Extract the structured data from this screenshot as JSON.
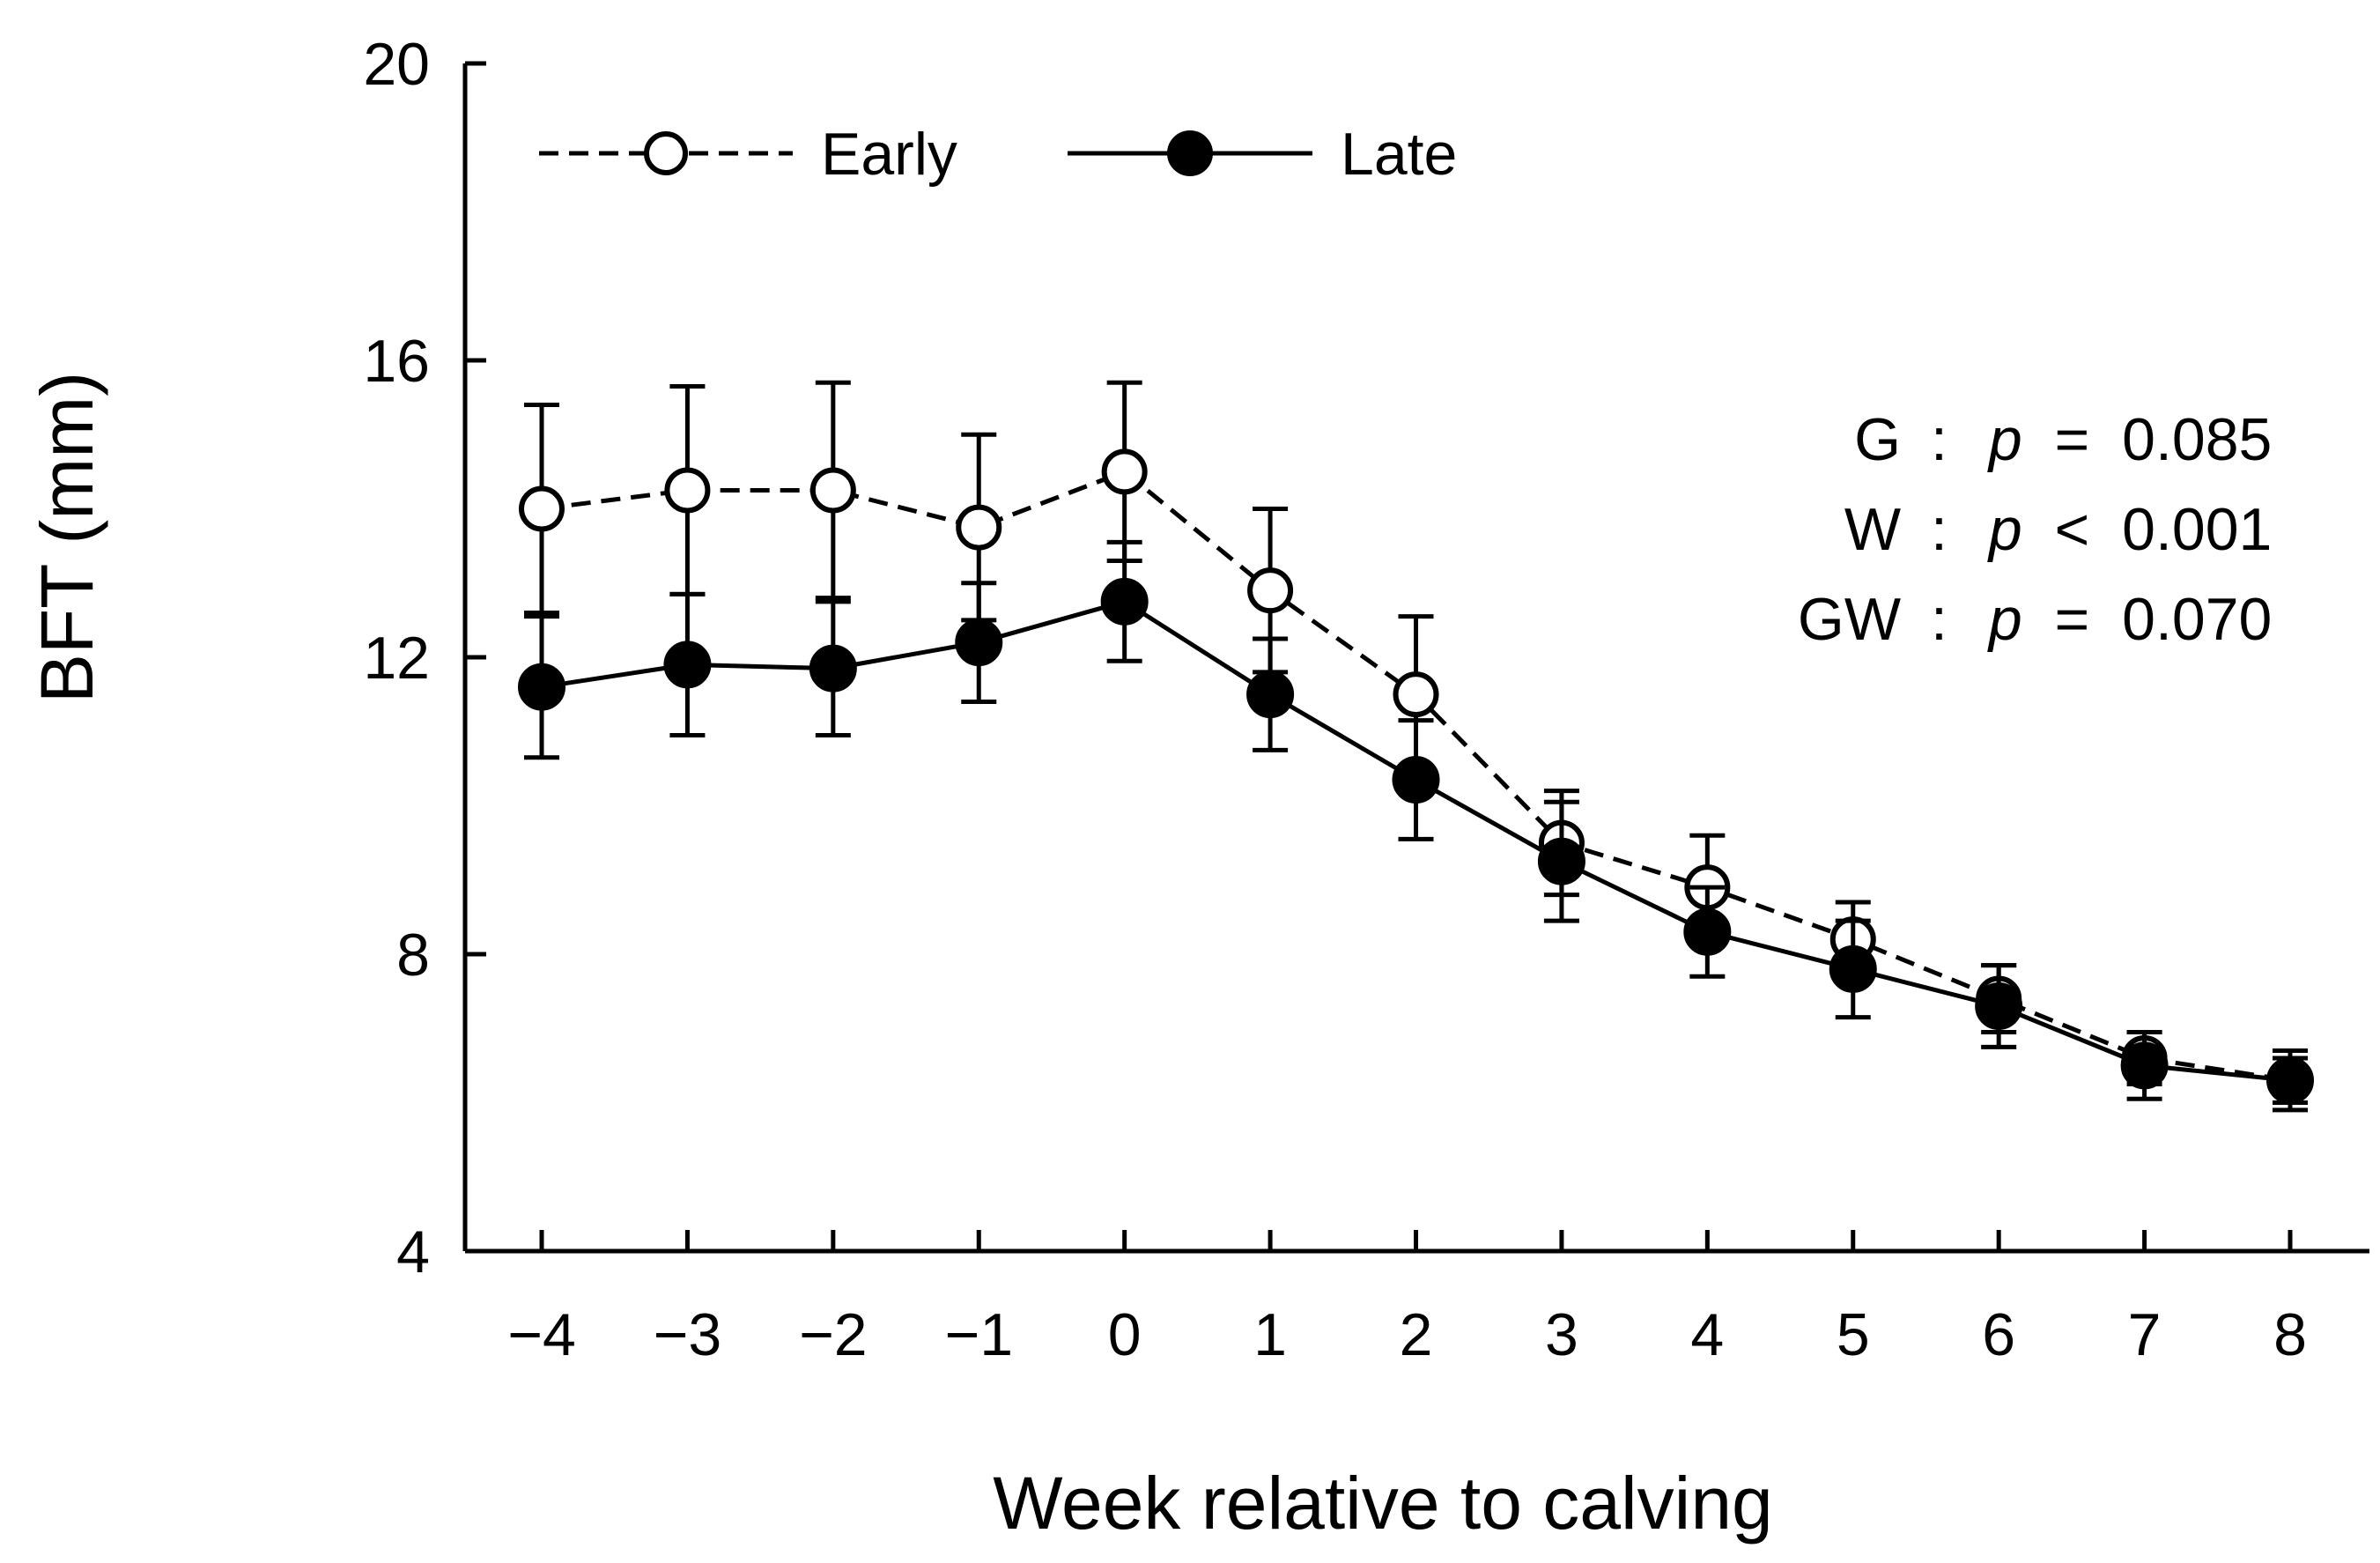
{
  "chart_data": {
    "type": "line",
    "xlabel": "Week relative to calving",
    "ylabel": "BFT (mm)",
    "ylim": [
      4,
      20
    ],
    "yticks": [
      4,
      8,
      12,
      16,
      20
    ],
    "x": [
      -4,
      -3,
      -2,
      -1,
      0,
      1,
      2,
      3,
      4,
      5,
      6,
      7,
      8
    ],
    "x_tick_labels": [
      "−4",
      "−3",
      "−2",
      "−1",
      "0",
      "1",
      "2",
      "3",
      "4",
      "5",
      "6",
      "7",
      "8"
    ],
    "series": [
      {
        "name": "Early",
        "marker": "open-circle",
        "line_style": "dashed",
        "values": [
          14.0,
          14.25,
          14.25,
          13.75,
          14.5,
          12.9,
          11.5,
          9.5,
          8.9,
          8.2,
          7.4,
          6.6,
          6.3
        ],
        "error": [
          1.4,
          1.4,
          1.45,
          1.25,
          1.2,
          1.1,
          1.05,
          0.7,
          0.7,
          0.5,
          0.45,
          0.35,
          0.3
        ]
      },
      {
        "name": "Late",
        "marker": "filled-circle",
        "line_style": "solid",
        "values": [
          11.6,
          11.9,
          11.85,
          12.2,
          12.75,
          11.5,
          10.35,
          9.25,
          8.3,
          7.8,
          7.3,
          6.5,
          6.3
        ],
        "error": [
          0.95,
          0.95,
          0.9,
          0.8,
          0.8,
          0.75,
          0.8,
          0.8,
          0.6,
          0.65,
          0.55,
          0.45,
          0.4
        ]
      }
    ],
    "legend": {
      "placement": "top-left"
    },
    "annotations": [
      {
        "label": "G",
        "sep": ":",
        "p": "p",
        "rel": "=",
        "value": "0.085"
      },
      {
        "label": "W",
        "sep": ":",
        "p": "p",
        "rel": "<",
        "value": "0.001"
      },
      {
        "label": "GW",
        "sep": ":",
        "p": "p",
        "rel": "=",
        "value": "0.070"
      }
    ]
  }
}
